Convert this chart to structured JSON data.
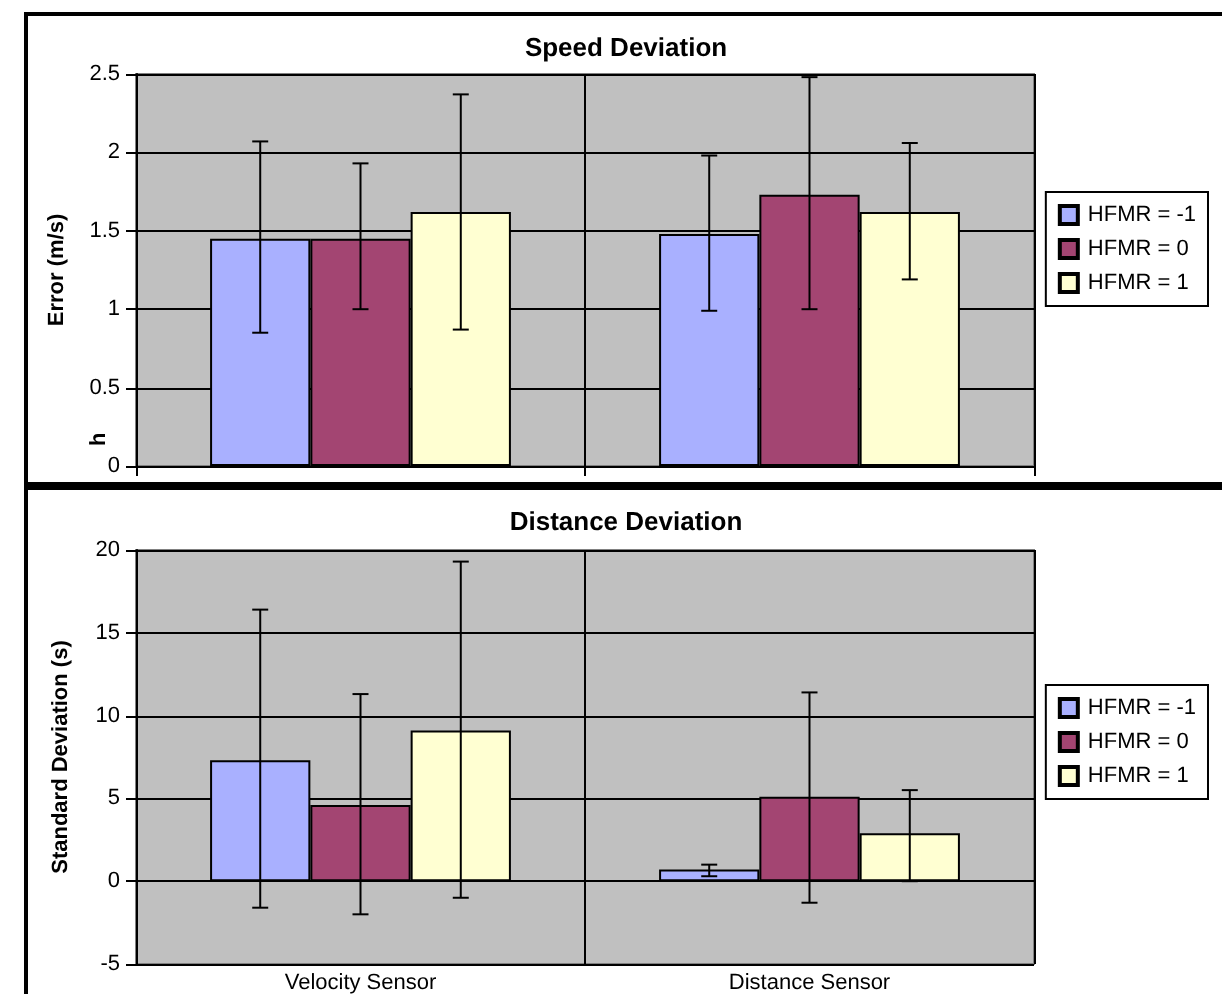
{
  "chart_data": [
    {
      "type": "bar",
      "title": "Speed Deviation",
      "ylabel": "Error (m/s)",
      "annotations": [
        "h"
      ],
      "categories": [
        null,
        null
      ],
      "ylim": [
        0,
        2.5
      ],
      "yticks": [
        0,
        0.5,
        1,
        1.5,
        2,
        2.5
      ],
      "grid": true,
      "legend": "right",
      "series": [
        {
          "name": "HFMR = -1",
          "color": "#a9b0ff",
          "values": [
            1.45,
            1.48
          ],
          "errors": [
            [
              0.85,
              2.07
            ],
            [
              0.99,
              1.98
            ]
          ]
        },
        {
          "name": "HFMR = 0",
          "color": "#a34572",
          "values": [
            1.45,
            1.73
          ],
          "errors": [
            [
              1.0,
              1.93
            ],
            [
              1.0,
              2.48
            ]
          ]
        },
        {
          "name": "HFMR = 1",
          "color": "#ffffd2",
          "values": [
            1.62,
            1.62
          ],
          "errors": [
            [
              0.87,
              2.37
            ],
            [
              1.19,
              2.06
            ]
          ]
        }
      ]
    },
    {
      "type": "bar",
      "title": "Distance Deviation",
      "ylabel": "Standard Deviation (s)",
      "categories": [
        "Velocity Sensor",
        "Distance Sensor"
      ],
      "ylim": [
        -5,
        20
      ],
      "yticks": [
        -5,
        0,
        5,
        10,
        15,
        20
      ],
      "grid": true,
      "legend": "right",
      "series": [
        {
          "name": "HFMR = -1",
          "color": "#a9b0ff",
          "values": [
            7.3,
            0.7
          ],
          "errors": [
            [
              -1.6,
              16.4
            ],
            [
              0.3,
              1.0
            ]
          ]
        },
        {
          "name": "HFMR = 0",
          "color": "#a34572",
          "values": [
            4.6,
            5.1
          ],
          "errors": [
            [
              -2.0,
              11.3
            ],
            [
              -1.3,
              11.4
            ]
          ]
        },
        {
          "name": "HFMR = 1",
          "color": "#ffffd2",
          "values": [
            9.1,
            2.9
          ],
          "errors": [
            [
              -1.0,
              19.3
            ],
            [
              0.0,
              5.5
            ]
          ]
        }
      ]
    }
  ]
}
